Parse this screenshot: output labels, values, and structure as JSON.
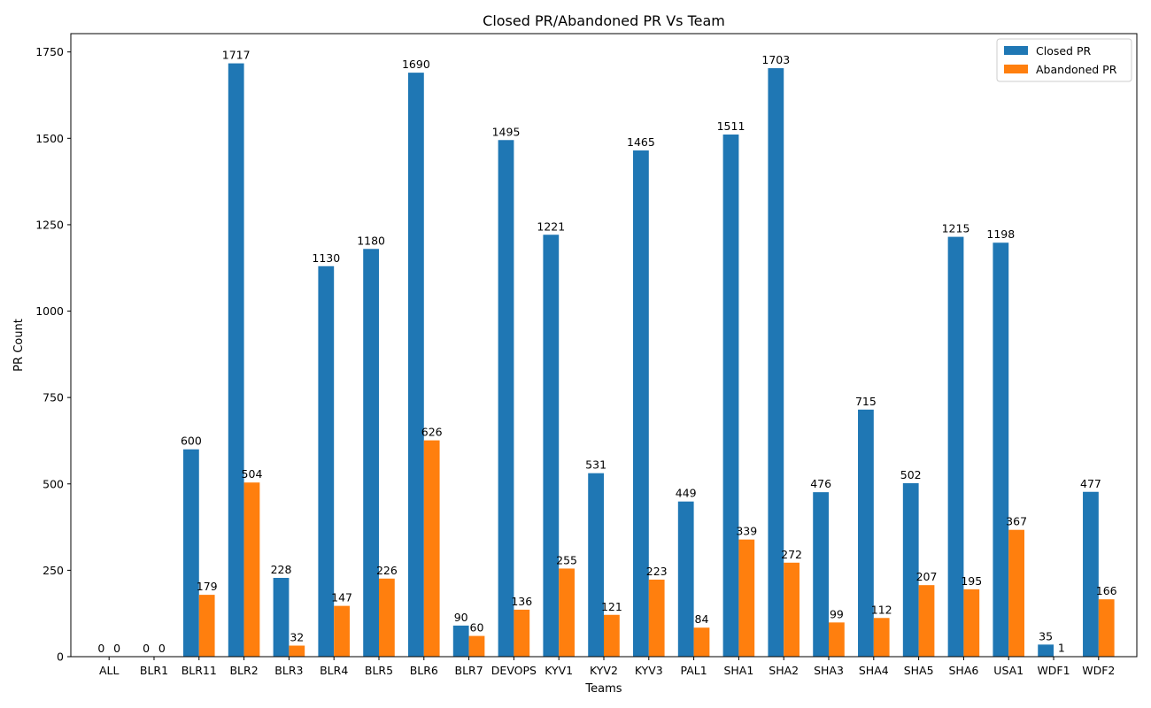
{
  "chart_data": {
    "type": "bar",
    "title": "Closed PR/Abandoned PR Vs Team",
    "xlabel": "Teams",
    "ylabel": "PR Count",
    "ylim": [
      0,
      1803
    ],
    "yticks": [
      0,
      250,
      500,
      750,
      1000,
      1250,
      1500,
      1750
    ],
    "grid": false,
    "legend_position": "top-right",
    "categories": [
      "ALL",
      "BLR1",
      "BLR11",
      "BLR2",
      "BLR3",
      "BLR4",
      "BLR5",
      "BLR6",
      "BLR7",
      "DEVOPS",
      "KYV1",
      "KYV2",
      "KYV3",
      "PAL1",
      "SHA1",
      "SHA2",
      "SHA3",
      "SHA4",
      "SHA5",
      "SHA6",
      "USA1",
      "WDF1",
      "WDF2"
    ],
    "series": [
      {
        "name": "Closed PR",
        "color": "#1f77b4",
        "values": [
          0,
          0,
          600,
          1717,
          228,
          1130,
          1180,
          1690,
          90,
          1495,
          1221,
          531,
          1465,
          449,
          1511,
          1703,
          476,
          715,
          502,
          1215,
          1198,
          35,
          477
        ]
      },
      {
        "name": "Abandoned PR",
        "color": "#ff7f0e",
        "values": [
          0,
          0,
          179,
          504,
          32,
          147,
          226,
          626,
          60,
          136,
          255,
          121,
          223,
          84,
          339,
          272,
          99,
          112,
          207,
          195,
          367,
          1,
          166
        ]
      }
    ]
  }
}
